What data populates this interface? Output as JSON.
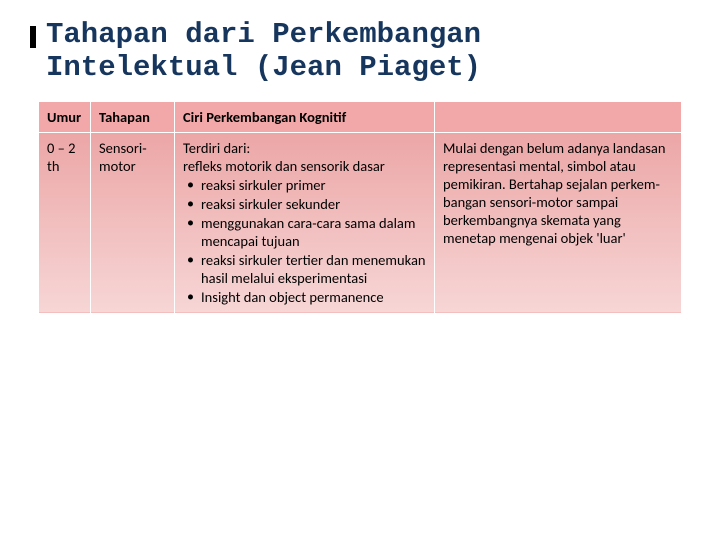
{
  "title": "Tahapan dari Perkembangan Intelektual (Jean Piaget)",
  "table": {
    "headers": [
      "Umur",
      "Tahapan",
      "Ciri Perkembangan Kognitif",
      ""
    ],
    "row": {
      "umur": "0 – 2 th",
      "tahapan": "Sensori-motor",
      "ciri_intro": "Terdiri dari:",
      "ciri_line2": "refleks motorik dan sensorik dasar",
      "ciri_bullets": [
        "reaksi sirkuler primer",
        "reaksi sirkuler sekunder",
        "menggunakan cara-cara sama dalam mencapai tujuan",
        "reaksi sirkuler tertier dan menemukan hasil melalui eksperimentasi",
        "Insight dan object permanence"
      ],
      "col4": "Mulai dengan belum adanya  landasan representasi mental, simbol atau pemikiran. Bertahap sejalan perkem-bangan sensori-motor sampai berkembangnya skemata yang menetap mengenai objek 'luar'"
    }
  },
  "colors": {
    "title": "#17365d",
    "header_bg": "#f2a8a8",
    "cell_bg_top": "#eca6a6",
    "cell_bg_bottom": "#f7d6d6",
    "border": "#ffffff"
  }
}
